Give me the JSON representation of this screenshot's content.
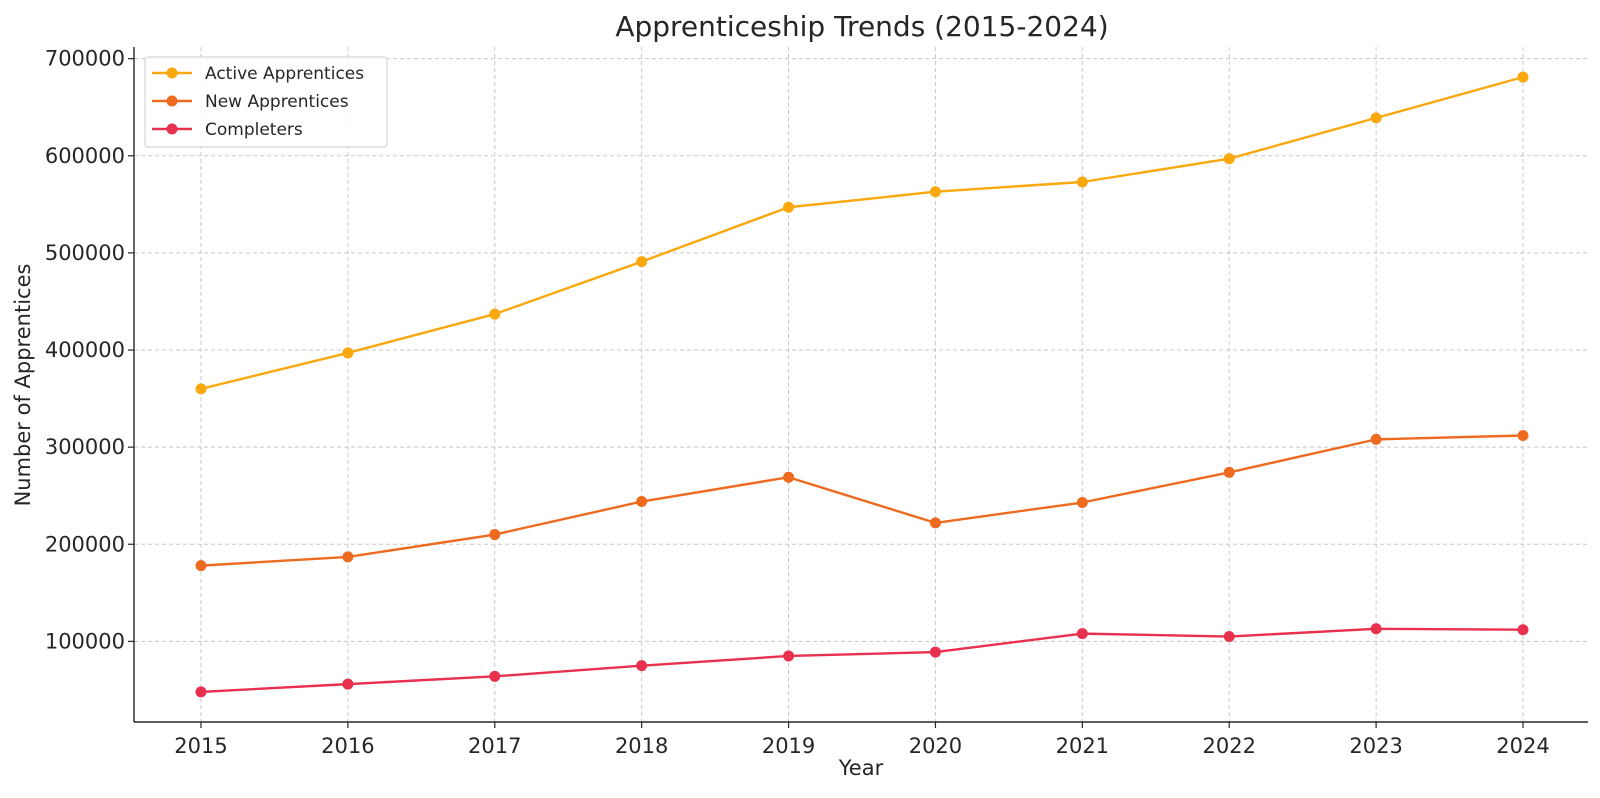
{
  "chart_data": {
    "type": "line",
    "title": "Apprenticeship Trends (2015-2024)",
    "xlabel": "Year",
    "ylabel": "Number of Apprentices",
    "x": [
      "2015",
      "2016",
      "2017",
      "2018",
      "2019",
      "2020",
      "2021",
      "2022",
      "2023",
      "2024"
    ],
    "y_ticks": [
      "100000",
      "200000",
      "300000",
      "400000",
      "500000",
      "600000",
      "700000"
    ],
    "ylim": [
      17000,
      712000
    ],
    "grid": true,
    "legend_position": "top-left",
    "series": [
      {
        "name": "Active Apprentices",
        "color": "#f9a80d",
        "values": [
          360000,
          397000,
          437000,
          491000,
          547000,
          563000,
          573000,
          597000,
          639000,
          681000
        ]
      },
      {
        "name": "New Apprentices",
        "color": "#ee6a1f",
        "values": [
          178000,
          187000,
          210000,
          244000,
          269000,
          222000,
          243000,
          274000,
          308000,
          312000
        ]
      },
      {
        "name": "Completers",
        "color": "#e8304f",
        "values": [
          48000,
          56000,
          64000,
          75000,
          85000,
          89000,
          108000,
          105000,
          113000,
          112000
        ]
      }
    ]
  }
}
